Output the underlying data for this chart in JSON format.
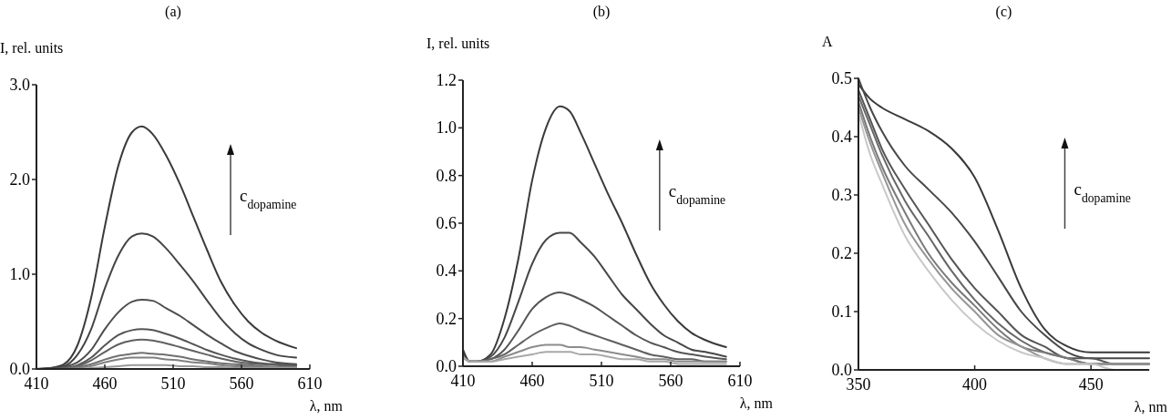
{
  "chart_data": [
    {
      "type": "line",
      "title": "(a)",
      "ylabel": "I, rel. units",
      "xlabel": "λ, nm",
      "annotations": [
        "c$_{dopamine}$"
      ],
      "xlim": [
        410,
        610
      ],
      "ylim": [
        0,
        3
      ],
      "xticks": [
        410,
        460,
        510,
        560,
        610
      ],
      "yticks": [
        {
          "value": 0,
          "label": "0.0"
        },
        {
          "value": 1,
          "label": "1.0"
        },
        {
          "value": 2,
          "label": "2.0"
        },
        {
          "value": 3,
          "label": "3.0"
        }
      ],
      "x": [
        410,
        420,
        430,
        440,
        450,
        460,
        470,
        480,
        487,
        495,
        505,
        515,
        525,
        535,
        545,
        555,
        565,
        575,
        585,
        600
      ],
      "series": [
        {
          "color": "#3a3a3a",
          "values": [
            0,
            0.01,
            0.05,
            0.25,
            0.75,
            1.5,
            2.15,
            2.5,
            2.56,
            2.48,
            2.25,
            1.95,
            1.6,
            1.25,
            0.92,
            0.68,
            0.5,
            0.38,
            0.3,
            0.22
          ]
        },
        {
          "color": "#444444",
          "values": [
            0,
            0.01,
            0.03,
            0.15,
            0.42,
            0.85,
            1.2,
            1.4,
            1.43,
            1.4,
            1.27,
            1.1,
            0.92,
            0.72,
            0.53,
            0.38,
            0.27,
            0.2,
            0.15,
            0.12
          ]
        },
        {
          "color": "#4d4d4d",
          "values": [
            0,
            0,
            0.02,
            0.07,
            0.2,
            0.42,
            0.6,
            0.71,
            0.73,
            0.72,
            0.64,
            0.56,
            0.46,
            0.36,
            0.27,
            0.19,
            0.14,
            0.1,
            0.07,
            0.05
          ]
        },
        {
          "color": "#555555",
          "values": [
            0,
            0,
            0.01,
            0.04,
            0.12,
            0.25,
            0.36,
            0.41,
            0.42,
            0.41,
            0.37,
            0.32,
            0.26,
            0.2,
            0.15,
            0.11,
            0.08,
            0.06,
            0.05,
            0.04
          ]
        },
        {
          "color": "#606060",
          "values": [
            0,
            0,
            0.01,
            0.03,
            0.09,
            0.18,
            0.26,
            0.3,
            0.31,
            0.3,
            0.27,
            0.23,
            0.19,
            0.15,
            0.11,
            0.08,
            0.06,
            0.05,
            0.04,
            0.03
          ]
        },
        {
          "color": "#707070",
          "values": [
            0,
            0,
            0,
            0.02,
            0.05,
            0.1,
            0.14,
            0.16,
            0.17,
            0.16,
            0.15,
            0.13,
            0.1,
            0.08,
            0.06,
            0.05,
            0.04,
            0.03,
            0.02,
            0.02
          ]
        },
        {
          "color": "#808080",
          "values": [
            0,
            0,
            0,
            0.01,
            0.03,
            0.07,
            0.1,
            0.12,
            0.12,
            0.12,
            0.1,
            0.09,
            0.07,
            0.06,
            0.04,
            0.03,
            0.03,
            0.02,
            0.02,
            0.02
          ]
        },
        {
          "color": "#999999",
          "values": [
            0,
            0,
            0,
            0,
            0.01,
            0.02,
            0.03,
            0.04,
            0.04,
            0.04,
            0.04,
            0.03,
            0.03,
            0.02,
            0.02,
            0.01,
            0.01,
            0.01,
            0.01,
            0.01
          ]
        }
      ]
    },
    {
      "type": "line",
      "title": "(b)",
      "ylabel": "I, rel. units",
      "xlabel": "λ, nm",
      "annotations": [
        "c$_{dopamine}$"
      ],
      "xlim": [
        410,
        610
      ],
      "ylim": [
        0,
        1.2
      ],
      "xticks": [
        410,
        460,
        510,
        560,
        610
      ],
      "yticks": [
        {
          "value": 0,
          "label": "0.0"
        },
        0.2,
        0.4,
        0.6,
        0.8,
        {
          "value": 1,
          "label": "1.0"
        },
        1.2
      ],
      "x": [
        410,
        415,
        420,
        430,
        440,
        450,
        460,
        470,
        480,
        487,
        495,
        505,
        515,
        525,
        535,
        545,
        555,
        565,
        575,
        585,
        600
      ],
      "series": [
        {
          "color": "#3a3a3a",
          "values": [
            0.07,
            0.02,
            0.02,
            0.05,
            0.2,
            0.45,
            0.78,
            1.0,
            1.09,
            1.07,
            0.98,
            0.85,
            0.72,
            0.6,
            0.47,
            0.35,
            0.26,
            0.19,
            0.14,
            0.11,
            0.08
          ]
        },
        {
          "color": "#474747",
          "values": [
            0.05,
            0.02,
            0.02,
            0.04,
            0.12,
            0.27,
            0.43,
            0.53,
            0.56,
            0.56,
            0.52,
            0.46,
            0.38,
            0.3,
            0.24,
            0.18,
            0.13,
            0.1,
            0.07,
            0.06,
            0.04
          ]
        },
        {
          "color": "#555555",
          "values": [
            0.04,
            0.02,
            0.02,
            0.03,
            0.07,
            0.15,
            0.24,
            0.29,
            0.31,
            0.3,
            0.28,
            0.25,
            0.21,
            0.17,
            0.13,
            0.1,
            0.08,
            0.06,
            0.05,
            0.04,
            0.03
          ]
        },
        {
          "color": "#606060",
          "values": [
            0.04,
            0.02,
            0.02,
            0.03,
            0.05,
            0.09,
            0.13,
            0.16,
            0.18,
            0.17,
            0.15,
            0.13,
            0.11,
            0.09,
            0.07,
            0.05,
            0.04,
            0.03,
            0.03,
            0.02,
            0.02
          ]
        },
        {
          "color": "#8c8c8c",
          "values": [
            0.04,
            0.02,
            0.02,
            0.02,
            0.04,
            0.06,
            0.08,
            0.09,
            0.09,
            0.08,
            0.08,
            0.07,
            0.06,
            0.05,
            0.04,
            0.03,
            0.03,
            0.02,
            0.02,
            0.02,
            0.02
          ]
        },
        {
          "color": "#a8a8a8",
          "values": [
            0.04,
            0.02,
            0.02,
            0.02,
            0.03,
            0.04,
            0.05,
            0.06,
            0.06,
            0.06,
            0.05,
            0.05,
            0.04,
            0.03,
            0.03,
            0.02,
            0.02,
            0.01,
            0.01,
            0.01,
            0.01
          ]
        }
      ]
    },
    {
      "type": "line",
      "title": "(c)",
      "ylabel": "A",
      "xlabel": "λ, nm",
      "annotations": [
        "c$_{dopamine}$"
      ],
      "xlim": [
        350,
        475
      ],
      "ylim": [
        0,
        0.5
      ],
      "xticks": [
        350,
        400,
        450
      ],
      "yticks": [
        {
          "value": 0,
          "label": "0.0"
        },
        0.1,
        0.2,
        0.3,
        0.4,
        0.5
      ],
      "x": [
        350,
        355,
        360,
        370,
        380,
        390,
        400,
        410,
        420,
        430,
        440,
        450,
        460,
        475
      ],
      "series": [
        {
          "color": "#3a3a3a",
          "values": [
            0.49,
            0.465,
            0.45,
            0.43,
            0.41,
            0.38,
            0.33,
            0.24,
            0.14,
            0.07,
            0.04,
            0.03,
            0.03,
            0.03
          ]
        },
        {
          "color": "#474747",
          "values": [
            0.5,
            0.45,
            0.41,
            0.35,
            0.31,
            0.27,
            0.22,
            0.16,
            0.1,
            0.06,
            0.03,
            0.02,
            0.02,
            0.02
          ]
        },
        {
          "color": "#555555",
          "values": [
            0.48,
            0.43,
            0.38,
            0.31,
            0.25,
            0.19,
            0.14,
            0.1,
            0.06,
            0.04,
            0.02,
            0.02,
            0.01,
            0.01
          ]
        },
        {
          "color": "#666666",
          "values": [
            0.47,
            0.42,
            0.37,
            0.29,
            0.23,
            0.17,
            0.12,
            0.08,
            0.05,
            0.03,
            0.02,
            0.01,
            0.01,
            0.01
          ]
        },
        {
          "color": "#7a7a7a",
          "values": [
            0.46,
            0.4,
            0.35,
            0.27,
            0.2,
            0.15,
            0.11,
            0.07,
            0.04,
            0.03,
            0.02,
            0.01,
            0.01,
            0.01
          ]
        },
        {
          "color": "#959595",
          "values": [
            0.45,
            0.39,
            0.34,
            0.25,
            0.19,
            0.14,
            0.1,
            0.06,
            0.04,
            0.02,
            0.01,
            0.01,
            0.01,
            0.01
          ]
        },
        {
          "color": "#c8c8c8",
          "values": [
            0.44,
            0.37,
            0.32,
            0.23,
            0.17,
            0.12,
            0.08,
            0.05,
            0.03,
            0.02,
            0.01,
            0.01,
            0,
            0
          ]
        }
      ]
    }
  ]
}
